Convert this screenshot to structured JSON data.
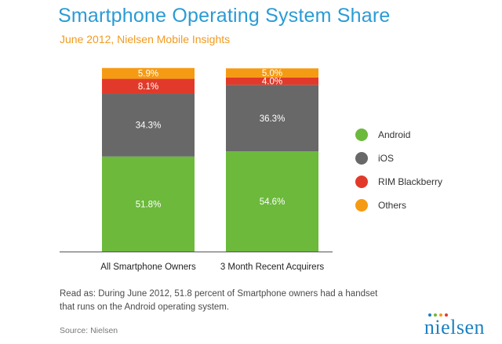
{
  "chart_data": {
    "type": "bar",
    "stacked": true,
    "title": "Smartphone Operating System Share",
    "subtitle": "June 2012, Nielsen Mobile Insights",
    "categories": [
      "All Smartphone Owners",
      "3 Month Recent Acquirers"
    ],
    "series": [
      {
        "name": "Android",
        "color": "#6cb93c",
        "values": [
          51.8,
          54.6
        ],
        "labels": [
          "51.8%",
          "54.6%"
        ]
      },
      {
        "name": "iOS",
        "color": "#686868",
        "values": [
          34.3,
          36.3
        ],
        "labels": [
          "34.3%",
          "36.3%"
        ]
      },
      {
        "name": "RIM Blackberry",
        "color": "#e23a2a",
        "values": [
          8.1,
          4.0
        ],
        "labels": [
          "8.1%",
          "4.0%"
        ]
      },
      {
        "name": "Others",
        "color": "#f59b13",
        "values": [
          5.9,
          5.0
        ],
        "labels": [
          "5.9%",
          "5.0%"
        ]
      }
    ],
    "ylim": [
      0,
      100
    ],
    "xlabel": "",
    "ylabel": "",
    "grid": false,
    "legend_position": "right"
  },
  "note": "Read as: During June 2012, 51.8 percent of Smartphone owners had a handset that runs on the Android operating system.",
  "source": "Source: Nielsen",
  "logo": {
    "text": "nielsen",
    "dot_colors": [
      "#1c80c3",
      "#6cb93c",
      "#f59b13",
      "#e23a2a"
    ]
  }
}
